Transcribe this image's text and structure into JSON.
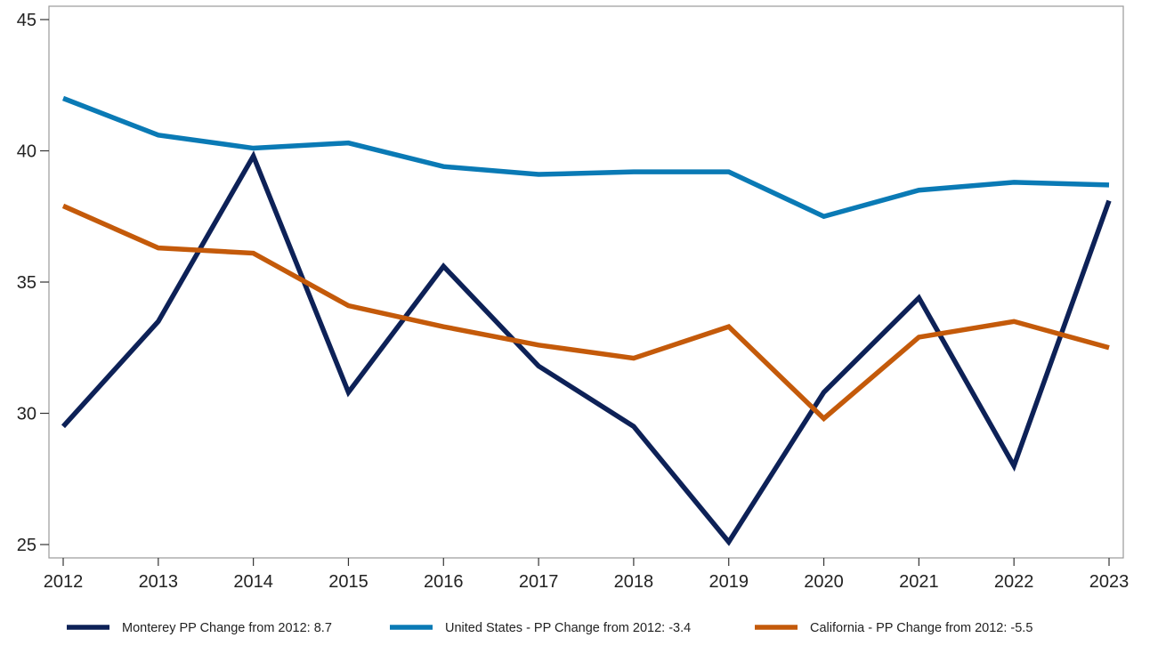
{
  "chart_data": {
    "type": "line",
    "title": "",
    "xlabel": "",
    "ylabel": "",
    "x": [
      2012,
      2013,
      2014,
      2015,
      2016,
      2017,
      2018,
      2019,
      2020,
      2021,
      2022,
      2023
    ],
    "ylim": [
      25,
      45
    ],
    "yticks": [
      25,
      30,
      35,
      40,
      45
    ],
    "grid": false,
    "legend_position": "bottom",
    "series": [
      {
        "name": "Monterey PP Change from 2012: 8.7",
        "color": "#0d2157",
        "values": [
          29.5,
          33.5,
          39.8,
          30.8,
          35.6,
          31.8,
          29.5,
          25.1,
          30.8,
          34.4,
          28.0,
          38.1
        ]
      },
      {
        "name": "United States - PP Change from 2012: -3.4",
        "color": "#0a7ab5",
        "values": [
          42.0,
          40.6,
          40.1,
          40.3,
          39.4,
          39.1,
          39.2,
          39.2,
          37.5,
          38.5,
          38.8,
          38.7
        ]
      },
      {
        "name": "California - PP Change from 2012: -5.5",
        "color": "#c45a0a",
        "values": [
          37.9,
          36.3,
          36.1,
          34.1,
          33.3,
          32.6,
          32.1,
          33.3,
          29.8,
          32.9,
          33.5,
          32.5
        ]
      }
    ]
  }
}
